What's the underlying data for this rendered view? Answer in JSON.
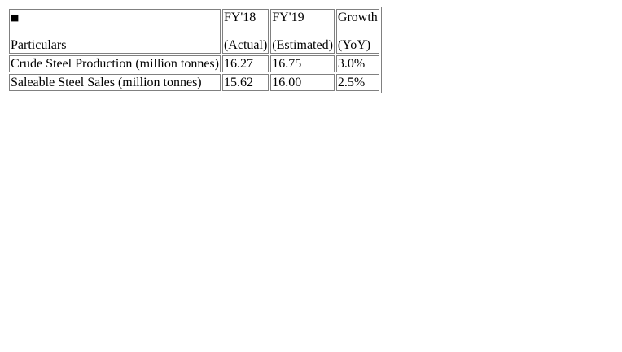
{
  "table": {
    "header": {
      "bullet": "■",
      "particulars": "Particulars",
      "columns": [
        {
          "line1": "FY'18",
          "line2": "(Actual)"
        },
        {
          "line1": "FY'19",
          "line2": "(Estimated)"
        },
        {
          "line1": "Growth",
          "line2": "(YoY)"
        }
      ]
    },
    "rows": [
      {
        "label": "Crude Steel Production (million tonnes)",
        "values": [
          "16.27",
          "16.75",
          "3.0%"
        ]
      },
      {
        "label": "Saleable Steel Sales (million tonnes)",
        "values": [
          "15.62",
          "16.00",
          "2.5%"
        ]
      }
    ]
  }
}
